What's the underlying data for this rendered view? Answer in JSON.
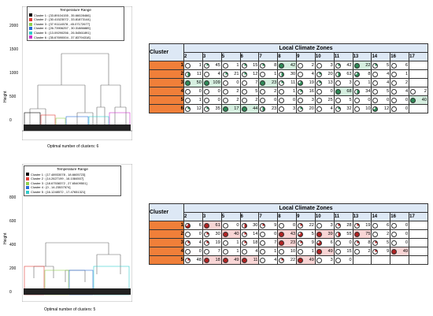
{
  "top_plot": {
    "y_label": "Height",
    "y_ticks": [
      "2000",
      "1500",
      "1000",
      "500",
      "0"
    ],
    "caption": "Optimal number of clusters: 6",
    "legend_title": "Temperature Range",
    "legend": [
      {
        "label": "Cluster 1 : [33.89104155 , 35.66028466]",
        "color": "#000000"
      },
      {
        "label": "Cluster 2 : [30.41523072 , 33.81873144]",
        "color": "#e0403a"
      },
      {
        "label": "Cluster 3 : [37.91114578 , 45.07172677]",
        "color": "#8fd14f"
      },
      {
        "label": "Cluster 4 : [26.73906257 , 30.31886885]",
        "color": "#2b6ed8"
      },
      {
        "label": "Cluster 5 : [13.09290256 , 26.54561891]",
        "color": "#33cccc"
      },
      {
        "label": "Cluster 6 : [35.67690004 , 37.83794318]",
        "color": "#cc33cc"
      }
    ]
  },
  "bottom_plot": {
    "y_label": "Height",
    "y_ticks": [
      "800",
      "600",
      "400",
      "200",
      "0"
    ],
    "caption": "Optimal number of clusters: 5",
    "legend_title": "Temperature Range",
    "legend": [
      {
        "label": "Cluster 1 : [17.48933078 , 18.6605723]",
        "color": "#000000"
      },
      {
        "label": "Cluster 2 : [14.2627199 , 16.1084507]",
        "color": "#e0403a"
      },
      {
        "label": "Cluster 3 : [18.67538372 , 27.65409501]",
        "color": "#8fd14f"
      },
      {
        "label": "Cluster 4 : [0 , 14.23537574]",
        "color": "#2b6ed8"
      },
      {
        "label": "Cluster 5 : [16.1248572 , 17.47651321]",
        "color": "#33cccc"
      }
    ]
  },
  "top_table": {
    "title": "Local Climate Zones",
    "cluster_header": "Cluster",
    "zones": [
      "2",
      "3",
      "5",
      "6",
      "7",
      "8",
      "9",
      "10",
      "11",
      "13",
      "14",
      "16",
      "17"
    ],
    "cell_color": "#2e8b57",
    "cell_tint": "#d6efe0",
    "rows": [
      {
        "cluster": "1",
        "cells": [
          {
            "v": "1",
            "f": 0
          },
          {
            "v": "45",
            "f": 0.2
          },
          {
            "v": "1",
            "f": 0
          },
          {
            "v": "15",
            "f": 0.25
          },
          {
            "v": "8",
            "f": 0.25
          },
          {
            "v": "42",
            "f": 1
          },
          {
            "v": "2",
            "f": 0
          },
          {
            "v": "3",
            "f": 0
          },
          {
            "v": "42",
            "f": 0.25
          },
          {
            "v": "22",
            "f": 1
          },
          {
            "v": "5",
            "f": 0.25
          },
          {
            "v": "6",
            "f": 0
          },
          {
            "v": "",
            "f": 0
          }
        ]
      },
      {
        "cluster": "2",
        "cells": [
          {
            "v": "11",
            "f": 0.5
          },
          {
            "v": "4",
            "f": 0
          },
          {
            "v": "21",
            "f": 0.25
          },
          {
            "v": "12",
            "f": 0.25
          },
          {
            "v": "1",
            "f": 0
          },
          {
            "v": "30",
            "f": 0.5
          },
          {
            "v": "4",
            "f": 0
          },
          {
            "v": "20",
            "f": 0.25
          },
          {
            "v": "63",
            "f": 0.5
          },
          {
            "v": "8",
            "f": 0.75
          },
          {
            "v": "4",
            "f": 0
          },
          {
            "v": "1",
            "f": 0
          },
          {
            "v": "",
            "f": 0
          }
        ]
      },
      {
        "cluster": "3",
        "cells": [
          {
            "v": "50",
            "f": 1
          },
          {
            "v": "109",
            "f": 1
          },
          {
            "v": "0",
            "f": 0
          },
          {
            "v": "7",
            "f": 0
          },
          {
            "v": "23",
            "f": 1
          },
          {
            "v": "11",
            "f": 0.25
          },
          {
            "v": "19",
            "f": 0.75
          },
          {
            "v": "13",
            "f": 0.25
          },
          {
            "v": "3",
            "f": 0
          },
          {
            "v": "1",
            "f": 0
          },
          {
            "v": "4",
            "f": 0
          },
          {
            "v": "2",
            "f": 0
          },
          {
            "v": "",
            "f": 0
          }
        ]
      },
      {
        "cluster": "4",
        "cells": [
          {
            "v": "0",
            "f": 0
          },
          {
            "v": "0",
            "f": 0
          },
          {
            "v": "2",
            "f": 0
          },
          {
            "v": "5",
            "f": 0
          },
          {
            "v": "2",
            "f": 0
          },
          {
            "v": "1",
            "f": 0
          },
          {
            "v": "16",
            "f": 0.25
          },
          {
            "v": "0",
            "f": 0
          },
          {
            "v": "68",
            "f": 1
          },
          {
            "v": "34",
            "f": 0.5
          },
          {
            "v": "5",
            "f": 0
          },
          {
            "v": "4",
            "f": 0
          },
          {
            "v": "2",
            "f": 0
          }
        ]
      },
      {
        "cluster": "5",
        "cells": [
          {
            "v": "1",
            "f": 0
          },
          {
            "v": "0",
            "f": 0
          },
          {
            "v": "2",
            "f": 0
          },
          {
            "v": "2",
            "f": 0
          },
          {
            "v": "0",
            "f": 0
          },
          {
            "v": "0",
            "f": 0
          },
          {
            "v": "3",
            "f": 0
          },
          {
            "v": "25",
            "f": 0
          },
          {
            "v": "5",
            "f": 0
          },
          {
            "v": "0",
            "f": 0
          },
          {
            "v": "0",
            "f": 0
          },
          {
            "v": "0",
            "f": 0
          },
          {
            "v": "40",
            "f": 1
          }
        ]
      },
      {
        "cluster": "6",
        "cells": [
          {
            "v": "12",
            "f": 0.25
          },
          {
            "v": "35",
            "f": 0.25
          },
          {
            "v": "17",
            "f": 1
          },
          {
            "v": "44",
            "f": 1
          },
          {
            "v": "23",
            "f": 0.5
          },
          {
            "v": "3",
            "f": 0
          },
          {
            "v": "20",
            "f": 0.25
          },
          {
            "v": "4",
            "f": 0
          },
          {
            "v": "32",
            "f": 0.25
          },
          {
            "v": "10",
            "f": 0
          },
          {
            "v": "12",
            "f": 0.75
          },
          {
            "v": "0",
            "f": 0
          },
          {
            "v": "",
            "f": 0
          }
        ]
      }
    ]
  },
  "bottom_table": {
    "title": "Local Climate Zones",
    "cluster_header": "Cluster",
    "zones": [
      "2",
      "3",
      "5",
      "6",
      "7",
      "8",
      "9",
      "10",
      "11",
      "13",
      "14",
      "16",
      "17"
    ],
    "cell_color": "#b22222",
    "cell_tint": "#f8d5d5",
    "rows": [
      {
        "cluster": "1",
        "cells": [
          {
            "v": "6",
            "f": 0.75
          },
          {
            "v": "61",
            "f": 1
          },
          {
            "v": "0",
            "f": 0
          },
          {
            "v": "30",
            "f": 0.5
          },
          {
            "v": "9",
            "f": 0.25
          },
          {
            "v": "0",
            "f": 0
          },
          {
            "v": "22",
            "f": 0.25
          },
          {
            "v": "3",
            "f": 0
          },
          {
            "v": "28",
            "f": 0.25
          },
          {
            "v": "19",
            "f": 0.25
          },
          {
            "v": "6",
            "f": 0
          },
          {
            "v": "0",
            "f": 0
          },
          {
            "v": "",
            "f": 0
          }
        ]
      },
      {
        "cluster": "2",
        "cells": [
          {
            "v": "0",
            "f": 0
          },
          {
            "v": "30",
            "f": 0.25
          },
          {
            "v": "40",
            "f": 1
          },
          {
            "v": "14",
            "f": 0.25
          },
          {
            "v": "0",
            "f": 0
          },
          {
            "v": "43",
            "f": 1
          },
          {
            "v": "5",
            "f": 0.75
          },
          {
            "v": "39",
            "f": 1
          },
          {
            "v": "55",
            "f": 0.5
          },
          {
            "v": "75",
            "f": 1
          },
          {
            "v": "2",
            "f": 0
          },
          {
            "v": "0",
            "f": 0
          },
          {
            "v": "",
            "f": 0
          }
        ]
      },
      {
        "cluster": "3",
        "cells": [
          {
            "v": "4",
            "f": 0.25
          },
          {
            "v": "19",
            "f": 0.25
          },
          {
            "v": "1",
            "f": 0
          },
          {
            "v": "18",
            "f": 0.25
          },
          {
            "v": "7",
            "f": 0
          },
          {
            "v": "23",
            "f": 1
          },
          {
            "v": "9",
            "f": 0.25
          },
          {
            "v": "6",
            "f": 0.75
          },
          {
            "v": "0",
            "f": 0
          },
          {
            "v": "8",
            "f": 0.25
          },
          {
            "v": "5",
            "f": 0.25
          },
          {
            "v": "0",
            "f": 0
          },
          {
            "v": "",
            "f": 0
          }
        ]
      },
      {
        "cluster": "4",
        "cells": [
          {
            "v": "0",
            "f": 0
          },
          {
            "v": "7",
            "f": 0
          },
          {
            "v": "1",
            "f": 0
          },
          {
            "v": "4",
            "f": 0
          },
          {
            "v": "1",
            "f": 0
          },
          {
            "v": "10",
            "f": 0
          },
          {
            "v": "1",
            "f": 0
          },
          {
            "v": "49",
            "f": 1
          },
          {
            "v": "15",
            "f": 0
          },
          {
            "v": "2",
            "f": 0
          },
          {
            "v": "9",
            "f": 0.25
          },
          {
            "v": "49",
            "f": 1
          },
          {
            "v": "",
            "f": 0
          }
        ]
      },
      {
        "cluster": "5",
        "cells": [
          {
            "v": "48",
            "f": 0.25
          },
          {
            "v": "18",
            "f": 1
          },
          {
            "v": "49",
            "f": 1
          },
          {
            "v": "11",
            "f": 1
          },
          {
            "v": "4",
            "f": 0
          },
          {
            "v": "22",
            "f": 0.25
          },
          {
            "v": "49",
            "f": 1
          },
          {
            "v": "3",
            "f": 0
          },
          {
            "v": "0",
            "f": 0
          },
          {
            "v": "",
            "f": 0
          },
          {
            "v": "",
            "f": 0
          },
          {
            "v": "",
            "f": 0
          },
          {
            "v": "",
            "f": 0
          }
        ]
      }
    ]
  }
}
